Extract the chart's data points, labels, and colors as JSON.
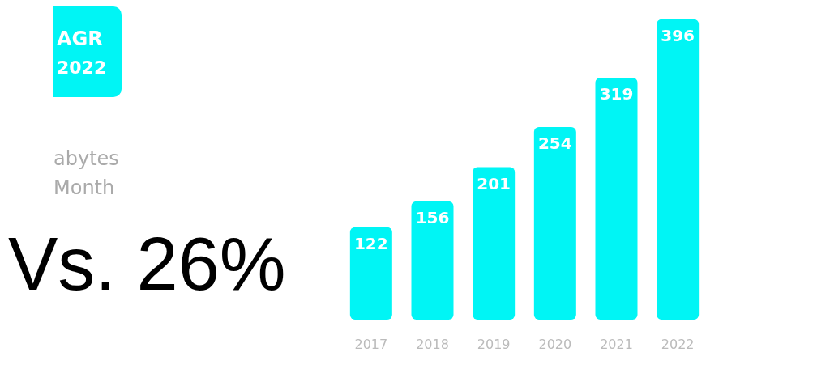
{
  "chart_data": {
    "type": "bar",
    "categories": [
      "2017",
      "2018",
      "2019",
      "2020",
      "2021",
      "2022"
    ],
    "values": [
      122,
      156,
      201,
      254,
      319,
      396
    ],
    "color": "#00f5f5",
    "tick_labels": "x",
    "data_labels": true,
    "annotations": [
      "AGR 2022",
      "abytes Month",
      "Vs. 26%"
    ]
  }
}
